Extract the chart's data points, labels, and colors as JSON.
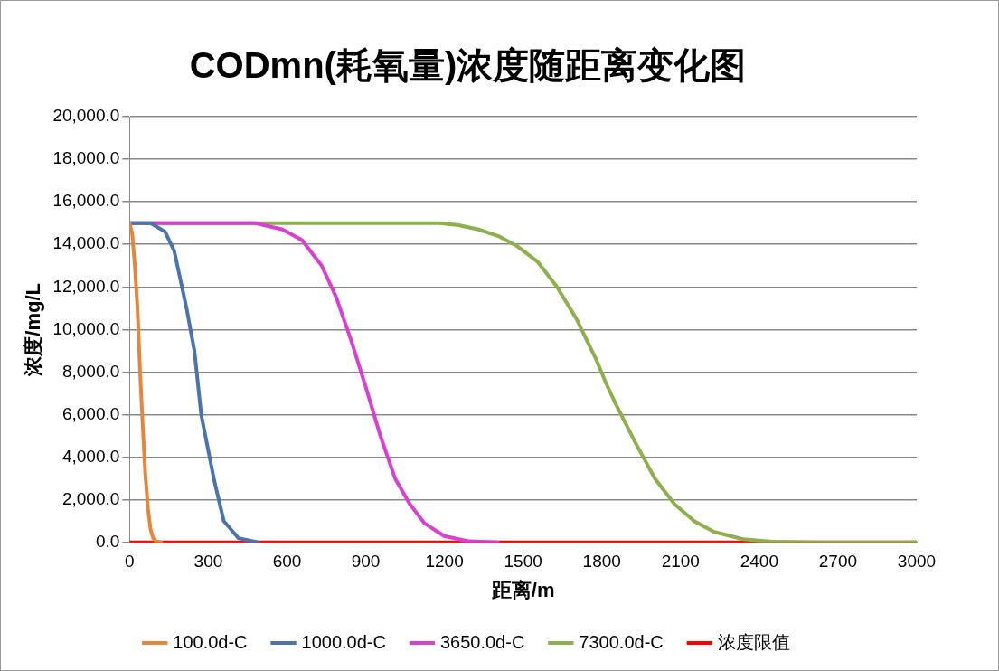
{
  "chart_data": {
    "type": "line",
    "title": "CODmn(耗氧量)浓度随距离变化图",
    "xlabel": "距离/m",
    "ylabel": "浓度/mg/L",
    "xlim": [
      0,
      3000
    ],
    "xticks": [
      0,
      300,
      600,
      900,
      1200,
      1500,
      1800,
      2100,
      2400,
      2700,
      3000
    ],
    "ylim": [
      0,
      20000
    ],
    "yticks": [
      {
        "value": 0,
        "label": "0.0"
      },
      {
        "value": 2000,
        "label": "2,000.0"
      },
      {
        "value": 4000,
        "label": "4,000.0"
      },
      {
        "value": 6000,
        "label": "6,000.0"
      },
      {
        "value": 8000,
        "label": "8,000.0"
      },
      {
        "value": 10000,
        "label": "10,000.0"
      },
      {
        "value": 12000,
        "label": "12,000.0"
      },
      {
        "value": 14000,
        "label": "14,000.0"
      },
      {
        "value": 16000,
        "label": "16,000.0"
      },
      {
        "value": 18000,
        "label": "18,000.0"
      },
      {
        "value": 20000,
        "label": "20,000.0"
      }
    ],
    "grid": "y",
    "legend": "bottom",
    "marker": "none",
    "line_style": "solid",
    "series": [
      {
        "name": "100.0d-C",
        "color": "#e5863a",
        "x": [
          0,
          10,
          20,
          30,
          40,
          50,
          60,
          70,
          80,
          90,
          100,
          120
        ],
        "values": [
          15000,
          14500,
          13000,
          11000,
          8000,
          5500,
          3200,
          1600,
          600,
          200,
          50,
          0
        ]
      },
      {
        "name": "1000.0d-C",
        "color": "#4a74b0",
        "x": [
          0,
          80,
          135,
          170,
          217,
          247,
          273,
          321,
          359,
          415,
          490
        ],
        "values": [
          15000,
          15000,
          14600,
          13700,
          11000,
          9000,
          6000,
          3000,
          1000,
          200,
          0
        ]
      },
      {
        "name": "3650.0d-C",
        "color": "#d93fd1",
        "x": [
          0,
          480,
          583,
          657,
          732,
          788,
          844,
          900,
          956,
          1012,
          1068,
          1124,
          1199,
          1293,
          1404
        ],
        "values": [
          15000,
          15000,
          14700,
          14200,
          13000,
          11500,
          9500,
          7300,
          5000,
          3000,
          1800,
          900,
          300,
          50,
          0
        ]
      },
      {
        "name": "7300.0d-C",
        "color": "#8cb14c",
        "x": [
          0,
          1180,
          1255,
          1330,
          1404,
          1479,
          1554,
          1629,
          1703,
          1778,
          1815,
          1853,
          1927,
          2002,
          2077,
          2152,
          2226,
          2338,
          2450,
          2600,
          3000
        ],
        "values": [
          15000,
          15000,
          14900,
          14700,
          14400,
          13900,
          13200,
          12000,
          10500,
          8600,
          7500,
          6500,
          4700,
          3000,
          1800,
          1000,
          500,
          150,
          30,
          0,
          0
        ]
      },
      {
        "name": "浓度限值",
        "color": "#ff0000",
        "x": [
          0,
          3000
        ],
        "values": [
          0,
          0
        ]
      }
    ]
  }
}
